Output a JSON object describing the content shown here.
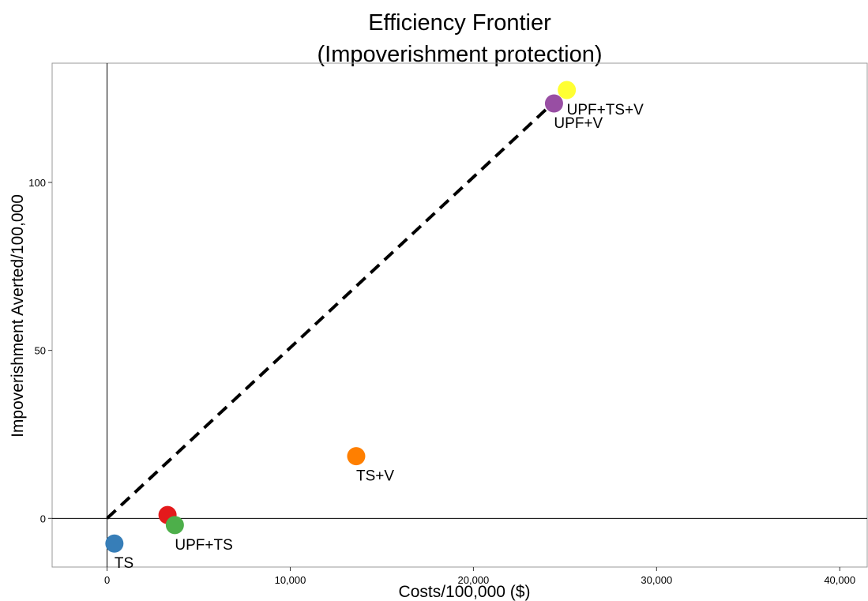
{
  "chart_data": {
    "type": "scatter",
    "title": "Efficiency Frontier",
    "subtitle": "(Impoverishment protection)",
    "xlabel": "Costs/100,000 ($)",
    "ylabel": "Impoverishment Averted/100,000",
    "xlim": [
      -3000,
      41500
    ],
    "ylim": [
      -14.5,
      135.5
    ],
    "x_ticks": [
      {
        "value": 0,
        "label": "0"
      },
      {
        "value": 10000,
        "label": "10,000"
      },
      {
        "value": 20000,
        "label": "20,000"
      },
      {
        "value": 30000,
        "label": "30,000"
      },
      {
        "value": 40000,
        "label": "40,000"
      }
    ],
    "y_ticks": [
      {
        "value": 0,
        "label": "0"
      },
      {
        "value": 50,
        "label": "50"
      },
      {
        "value": 100,
        "label": "100"
      }
    ],
    "points": [
      {
        "x": 400,
        "y": -7.5,
        "color": "#377eb8",
        "label": "TS"
      },
      {
        "x": 3300,
        "y": 1.0,
        "color": "#e41a1c",
        "label": ""
      },
      {
        "x": 3700,
        "y": -2.0,
        "color": "#4daf4a",
        "label": "UPF+TS"
      },
      {
        "x": 13600,
        "y": 18.5,
        "color": "#ff7f00",
        "label": "TS+V"
      },
      {
        "x": 24400,
        "y": 123.5,
        "color": "#984ea3",
        "label": "UPF+V"
      },
      {
        "x": 25100,
        "y": 127.5,
        "color": "#ffff33",
        "label": "UPF+TS+V"
      }
    ],
    "frontier": {
      "x": [
        0,
        25100
      ],
      "y": [
        0,
        127.5
      ],
      "style": "dashed",
      "color": "#000000"
    },
    "reference_lines": {
      "x": 0,
      "y": 0
    },
    "grid": false
  }
}
